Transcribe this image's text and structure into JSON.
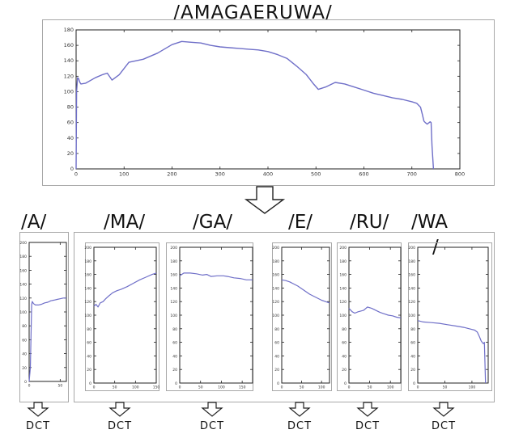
{
  "header": {
    "title": "/AMAGAERUWA/"
  },
  "main_plot": {
    "x_ticks": [
      "0",
      "100",
      "200",
      "300",
      "400",
      "500",
      "600",
      "700",
      "800"
    ],
    "y_ticks": [
      "0",
      "20",
      "40",
      "60",
      "80",
      "100",
      "120",
      "140",
      "160",
      "180"
    ]
  },
  "segments": [
    {
      "label": "/A/",
      "x_ticks": [
        "0",
        "50"
      ]
    },
    {
      "label": "/MA/",
      "x_ticks": [
        "0",
        "50",
        "100",
        "150"
      ]
    },
    {
      "label": "/GA/",
      "x_ticks": [
        "0",
        "50",
        "100",
        "150"
      ]
    },
    {
      "label": "/E/",
      "x_ticks": [
        "0",
        "50",
        "100"
      ]
    },
    {
      "label": "/RU/",
      "x_ticks": [
        "0",
        "50",
        "100"
      ]
    },
    {
      "label": "/WA",
      "label_line2": "/",
      "x_ticks": [
        "0",
        "50",
        "100"
      ]
    }
  ],
  "seg_y_ticks": [
    "0",
    "20",
    "40",
    "60",
    "80",
    "100",
    "120",
    "140",
    "160",
    "180",
    "200"
  ],
  "dct_label": "DCT",
  "colors": {
    "curve": "#6f6fc8",
    "frame": "#a8a8a8",
    "axis": "#222222"
  },
  "chart_data": [
    {
      "type": "line",
      "title": "/AMAGAERUWA/",
      "xlim": [
        0,
        800
      ],
      "ylim": [
        0,
        180
      ],
      "x": [
        0,
        1,
        3,
        5,
        8,
        10,
        20,
        40,
        55,
        65,
        75,
        90,
        110,
        140,
        170,
        200,
        220,
        240,
        260,
        280,
        300,
        320,
        340,
        360,
        380,
        400,
        420,
        440,
        460,
        480,
        495,
        505,
        520,
        540,
        560,
        580,
        600,
        620,
        640,
        660,
        680,
        700,
        710,
        718,
        722,
        725,
        728,
        732,
        736,
        738,
        740,
        742,
        745
      ],
      "y": [
        0,
        100,
        118,
        117,
        112,
        110,
        111,
        118,
        122,
        124,
        115,
        122,
        138,
        142,
        150,
        161,
        165,
        164,
        163,
        160,
        158,
        157,
        156,
        155,
        154,
        152,
        148,
        143,
        133,
        122,
        110,
        103,
        106,
        112,
        110,
        106,
        102,
        98,
        95,
        92,
        90,
        87,
        85,
        80,
        70,
        62,
        60,
        58,
        60,
        61,
        60,
        30,
        0
      ]
    },
    {
      "type": "line",
      "title": "/A/",
      "xlim": [
        0,
        60
      ],
      "ylim": [
        0,
        200
      ],
      "x": [
        0,
        2,
        4,
        5,
        7,
        10,
        15,
        20,
        25,
        30,
        35,
        40,
        45,
        50,
        55,
        60
      ],
      "y": [
        0,
        20,
        110,
        115,
        112,
        110,
        110,
        111,
        113,
        114,
        116,
        117,
        118,
        119,
        120,
        120
      ]
    },
    {
      "type": "line",
      "title": "/MA/",
      "xlim": [
        0,
        150
      ],
      "ylim": [
        0,
        200
      ],
      "x": [
        0,
        5,
        10,
        15,
        22,
        28,
        35,
        45,
        55,
        65,
        80,
        95,
        110,
        125,
        140,
        150
      ],
      "y": [
        113,
        116,
        112,
        118,
        120,
        124,
        128,
        133,
        136,
        138,
        142,
        147,
        152,
        156,
        160,
        162
      ]
    },
    {
      "type": "line",
      "title": "/GA/",
      "xlim": [
        0,
        175
      ],
      "ylim": [
        0,
        200
      ],
      "x": [
        0,
        10,
        25,
        40,
        55,
        65,
        75,
        90,
        105,
        115,
        130,
        145,
        160,
        175
      ],
      "y": [
        158,
        162,
        162,
        161,
        159,
        160,
        157,
        158,
        158,
        157,
        155,
        154,
        152,
        152
      ]
    },
    {
      "type": "line",
      "title": "/E/",
      "xlim": [
        0,
        120
      ],
      "ylim": [
        0,
        200
      ],
      "x": [
        0,
        10,
        20,
        30,
        40,
        50,
        60,
        70,
        80,
        90,
        100,
        110,
        120
      ],
      "y": [
        152,
        151,
        149,
        146,
        143,
        139,
        135,
        131,
        128,
        125,
        122,
        120,
        118
      ]
    },
    {
      "type": "line",
      "title": "/RU/",
      "xlim": [
        0,
        125
      ],
      "ylim": [
        0,
        200
      ],
      "x": [
        0,
        8,
        14,
        22,
        35,
        45,
        55,
        65,
        75,
        85,
        95,
        105,
        115,
        125
      ],
      "y": [
        110,
        105,
        103,
        105,
        107,
        112,
        110,
        107,
        104,
        102,
        100,
        99,
        97,
        96
      ]
    },
    {
      "type": "line",
      "title": "/WA/",
      "xlim": [
        0,
        130
      ],
      "ylim": [
        0,
        200
      ],
      "x": [
        0,
        10,
        25,
        40,
        55,
        70,
        85,
        95,
        105,
        110,
        114,
        117,
        119,
        121,
        123,
        124,
        125
      ],
      "y": [
        92,
        90,
        89,
        88,
        86,
        84,
        82,
        80,
        78,
        75,
        68,
        62,
        60,
        58,
        60,
        30,
        0
      ]
    }
  ]
}
